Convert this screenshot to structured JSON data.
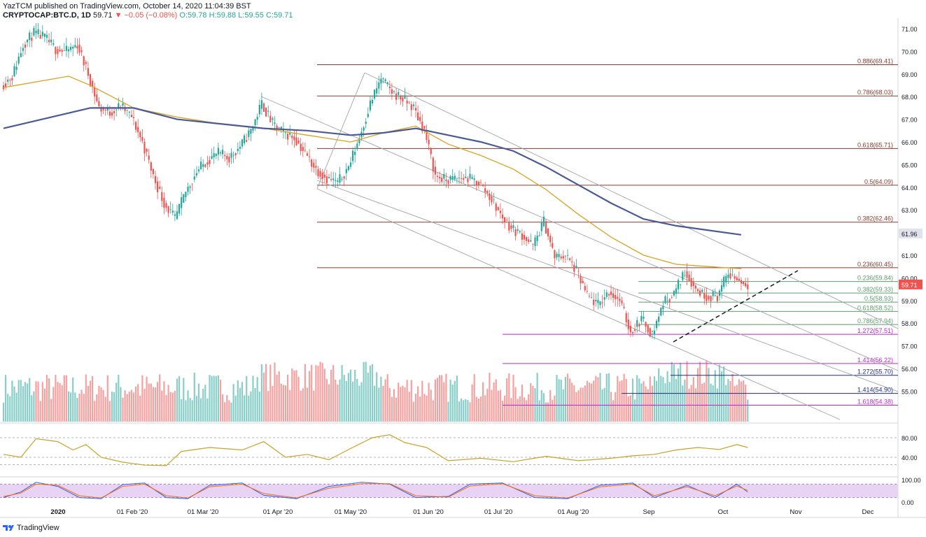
{
  "header": {
    "line1": "YazTCM published on TradingView.com, October 14, 2020 11:04:39 BST",
    "symbol": "CRYPTOCAP:BTC.D, 1D",
    "last": "59.71",
    "change": "▼ −0.05 (−0.08%)",
    "ohlc_o": "O:59.78",
    "ohlc_h": "H:59.88",
    "ohlc_l": "L:59.55",
    "ohlc_c": "C:59.71"
  },
  "footer": {
    "brand": "TradingView"
  },
  "colors": {
    "up": "#26a69a",
    "down": "#ef5350",
    "fib_main": "#8b3a2e",
    "fib_green": "#5c9e6b",
    "fib_magenta": "#c026d3",
    "fib_blue": "#1e2a8a",
    "ma_gold": "#d8a321",
    "ma_navy": "#4a5a95",
    "rsi": "#c9a227"
  },
  "chart_data": {
    "type": "candlestick",
    "title": "CRYPTOCAP:BTC.D, 1D",
    "x_ticks": [
      "2020",
      "01 Feb '20",
      "01 Mar '20",
      "01 Apr '20",
      "01 May '20",
      "01 Jun '20",
      "01 Jul '20",
      "01 Aug '20",
      "Sep",
      "Oct",
      "Nov",
      "Dec"
    ],
    "y_ticks": [
      "71.00",
      "70.00",
      "69.00",
      "68.00",
      "67.00",
      "66.00",
      "65.00",
      "64.00",
      "63.00",
      "62.00",
      "61.00",
      "60.00",
      "59.00",
      "58.00",
      "57.00",
      "56.00",
      "55.00"
    ],
    "ylim": [
      54.1,
      71.3
    ],
    "last_price": 59.71,
    "price_path": [
      [
        0,
        68.5
      ],
      [
        5,
        68.9
      ],
      [
        10,
        70.3
      ],
      [
        15,
        70.8
      ],
      [
        20,
        70.6
      ],
      [
        25,
        70.1
      ],
      [
        30,
        70.0
      ],
      [
        35,
        70.3
      ],
      [
        40,
        69.0
      ],
      [
        45,
        67.5
      ],
      [
        50,
        67.3
      ],
      [
        55,
        67.6
      ],
      [
        60,
        67.1
      ],
      [
        65,
        66.0
      ],
      [
        70,
        64.5
      ],
      [
        75,
        63.3
      ],
      [
        80,
        62.6
      ],
      [
        85,
        63.8
      ],
      [
        90,
        64.7
      ],
      [
        95,
        65.2
      ],
      [
        100,
        65.5
      ],
      [
        105,
        65.3
      ],
      [
        110,
        65.8
      ],
      [
        115,
        66.5
      ],
      [
        120,
        67.7
      ],
      [
        125,
        66.8
      ],
      [
        130,
        66.4
      ],
      [
        135,
        66.2
      ],
      [
        140,
        65.5
      ],
      [
        145,
        64.8
      ],
      [
        150,
        64.4
      ],
      [
        155,
        64.2
      ],
      [
        160,
        64.9
      ],
      [
        165,
        66.2
      ],
      [
        170,
        67.7
      ],
      [
        175,
        68.8
      ],
      [
        180,
        68.2
      ],
      [
        185,
        67.9
      ],
      [
        190,
        67.5
      ],
      [
        195,
        66.5
      ],
      [
        200,
        64.5
      ],
      [
        205,
        64.3
      ],
      [
        210,
        64.4
      ],
      [
        215,
        64.4
      ],
      [
        220,
        64.2
      ],
      [
        225,
        63.6
      ],
      [
        230,
        62.8
      ],
      [
        235,
        62.2
      ],
      [
        240,
        61.9
      ],
      [
        245,
        61.4
      ],
      [
        250,
        62.5
      ],
      [
        255,
        60.9
      ],
      [
        260,
        61.0
      ],
      [
        265,
        60.3
      ],
      [
        270,
        59.2
      ],
      [
        275,
        58.8
      ],
      [
        280,
        59.4
      ],
      [
        285,
        59.0
      ],
      [
        290,
        57.6
      ],
      [
        295,
        58.2
      ],
      [
        300,
        57.5
      ],
      [
        305,
        58.9
      ],
      [
        310,
        59.3
      ],
      [
        315,
        60.3
      ],
      [
        320,
        59.5
      ],
      [
        325,
        59.2
      ],
      [
        330,
        59.2
      ],
      [
        335,
        60.2
      ],
      [
        340,
        59.9
      ],
      [
        343,
        59.71
      ]
    ],
    "moving_averages": [
      {
        "color": "gold",
        "points": [
          [
            0,
            68.4
          ],
          [
            30,
            68.9
          ],
          [
            40,
            68.5
          ],
          [
            60,
            67.5
          ],
          [
            80,
            67.1
          ],
          [
            100,
            66.8
          ],
          [
            120,
            66.6
          ],
          [
            140,
            66.3
          ],
          [
            160,
            66.0
          ],
          [
            175,
            66.4
          ],
          [
            190,
            66.7
          ],
          [
            205,
            65.9
          ],
          [
            220,
            65.4
          ],
          [
            235,
            64.8
          ],
          [
            250,
            63.9
          ],
          [
            265,
            62.8
          ],
          [
            280,
            61.8
          ],
          [
            295,
            61.0
          ],
          [
            310,
            60.6
          ],
          [
            325,
            60.5
          ],
          [
            340,
            60.4
          ]
        ]
      },
      {
        "color": "navy",
        "points": [
          [
            0,
            66.6
          ],
          [
            40,
            67.5
          ],
          [
            60,
            67.5
          ],
          [
            80,
            67.0
          ],
          [
            100,
            66.8
          ],
          [
            120,
            66.6
          ],
          [
            140,
            66.5
          ],
          [
            160,
            66.3
          ],
          [
            175,
            66.4
          ],
          [
            190,
            66.6
          ],
          [
            205,
            66.3
          ],
          [
            220,
            66.0
          ],
          [
            235,
            65.6
          ],
          [
            250,
            64.9
          ],
          [
            265,
            64.1
          ],
          [
            280,
            63.3
          ],
          [
            295,
            62.6
          ],
          [
            310,
            62.3
          ],
          [
            325,
            62.1
          ],
          [
            340,
            61.9
          ]
        ]
      }
    ],
    "fib_levels": [
      {
        "label": "0.886(69.41)",
        "value": 69.41,
        "group": "main"
      },
      {
        "label": "0.786(68.03)",
        "value": 68.03,
        "group": "main"
      },
      {
        "label": "0.618(65.71)",
        "value": 65.71,
        "group": "main"
      },
      {
        "label": "0.5(64.09)",
        "value": 64.09,
        "group": "main"
      },
      {
        "label": "0.382(62.46)",
        "value": 62.46,
        "group": "main"
      },
      {
        "label": "0.236(60.45)",
        "value": 60.45,
        "group": "main"
      },
      {
        "label": "0.236(59.84)",
        "value": 59.84,
        "group": "green"
      },
      {
        "label": "0.382(59.33)",
        "value": 59.33,
        "group": "green"
      },
      {
        "label": "0.5(58.93)",
        "value": 58.93,
        "group": "green"
      },
      {
        "label": "0.618(58.52)",
        "value": 58.52,
        "group": "green"
      },
      {
        "label": "0.786(57.94)",
        "value": 57.94,
        "group": "green"
      },
      {
        "label": "1.272(57.51)",
        "value": 57.51,
        "group": "magenta"
      },
      {
        "label": "1.414(56.22)",
        "value": 56.22,
        "group": "magenta"
      },
      {
        "label": "1.272(55.70)",
        "value": 55.7,
        "group": "blue"
      },
      {
        "label": "1.414(54.90)",
        "value": 54.9,
        "group": "blue"
      },
      {
        "label": "1.618(54.38)",
        "value": 54.38,
        "group": "magenta"
      }
    ],
    "price_marks": [
      {
        "label": "61.96",
        "value": 61.96
      }
    ],
    "rsi": {
      "y_ticks": [
        "80.00",
        "40.00"
      ],
      "ylim": [
        15,
        95
      ],
      "series": [
        [
          0,
          46
        ],
        [
          8,
          40
        ],
        [
          15,
          78
        ],
        [
          25,
          72
        ],
        [
          32,
          55
        ],
        [
          38,
          66
        ],
        [
          45,
          40
        ],
        [
          55,
          30
        ],
        [
          65,
          24
        ],
        [
          75,
          23
        ],
        [
          82,
          52
        ],
        [
          95,
          60
        ],
        [
          110,
          55
        ],
        [
          120,
          72
        ],
        [
          130,
          40
        ],
        [
          140,
          46
        ],
        [
          150,
          35
        ],
        [
          160,
          58
        ],
        [
          170,
          80
        ],
        [
          178,
          86
        ],
        [
          185,
          70
        ],
        [
          195,
          60
        ],
        [
          205,
          33
        ],
        [
          220,
          38
        ],
        [
          235,
          31
        ],
        [
          250,
          42
        ],
        [
          265,
          33
        ],
        [
          280,
          38
        ],
        [
          290,
          43
        ],
        [
          300,
          46
        ],
        [
          310,
          55
        ],
        [
          320,
          60
        ],
        [
          330,
          56
        ],
        [
          338,
          66
        ],
        [
          343,
          60
        ]
      ]
    },
    "stoch": {
      "y_ticks": [
        "100.00",
        "0.00"
      ],
      "ylim": [
        -5,
        105
      ],
      "k": [
        [
          0,
          20
        ],
        [
          8,
          45
        ],
        [
          15,
          88
        ],
        [
          25,
          70
        ],
        [
          35,
          20
        ],
        [
          45,
          15
        ],
        [
          55,
          78
        ],
        [
          65,
          85
        ],
        [
          75,
          20
        ],
        [
          85,
          15
        ],
        [
          95,
          75
        ],
        [
          110,
          85
        ],
        [
          120,
          30
        ],
        [
          135,
          15
        ],
        [
          150,
          70
        ],
        [
          165,
          88
        ],
        [
          178,
          80
        ],
        [
          190,
          20
        ],
        [
          205,
          25
        ],
        [
          215,
          80
        ],
        [
          230,
          85
        ],
        [
          245,
          20
        ],
        [
          260,
          15
        ],
        [
          275,
          75
        ],
        [
          290,
          85
        ],
        [
          300,
          20
        ],
        [
          315,
          75
        ],
        [
          328,
          20
        ],
        [
          338,
          80
        ],
        [
          343,
          45
        ]
      ],
      "d": [
        [
          0,
          25
        ],
        [
          8,
          40
        ],
        [
          15,
          80
        ],
        [
          25,
          75
        ],
        [
          35,
          28
        ],
        [
          45,
          18
        ],
        [
          55,
          70
        ],
        [
          65,
          80
        ],
        [
          75,
          28
        ],
        [
          85,
          18
        ],
        [
          95,
          68
        ],
        [
          110,
          80
        ],
        [
          120,
          38
        ],
        [
          135,
          18
        ],
        [
          150,
          62
        ],
        [
          165,
          82
        ],
        [
          178,
          82
        ],
        [
          190,
          28
        ],
        [
          205,
          22
        ],
        [
          215,
          72
        ],
        [
          230,
          82
        ],
        [
          245,
          28
        ],
        [
          260,
          18
        ],
        [
          275,
          68
        ],
        [
          290,
          80
        ],
        [
          300,
          28
        ],
        [
          315,
          68
        ],
        [
          328,
          28
        ],
        [
          338,
          72
        ],
        [
          343,
          52
        ]
      ]
    }
  }
}
